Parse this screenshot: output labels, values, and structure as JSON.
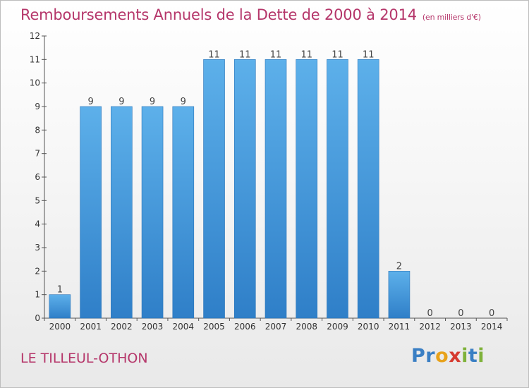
{
  "title": "Remboursements Annuels de la Dette de 2000 à 2014",
  "subtitle": "(en milliers d'€)",
  "commune": "LE TILLEUL-OTHON",
  "logo": {
    "letters": [
      "P",
      "r",
      "o",
      "x",
      "i",
      "t",
      "i"
    ],
    "colors": [
      "#3a7fc4",
      "#3a7fc4",
      "#e8a21b",
      "#d63a2f",
      "#7fb23a",
      "#3a7fc4",
      "#7fb23a"
    ]
  },
  "colors": {
    "bar_top": "#5db0ea",
    "bar_bottom": "#2f7fc8",
    "title": "#b5366a"
  },
  "chart_data": {
    "type": "bar",
    "title": "Remboursements Annuels de la Dette de 2000 à 2014",
    "categories": [
      "2000",
      "2001",
      "2002",
      "2003",
      "2004",
      "2005",
      "2006",
      "2007",
      "2008",
      "2009",
      "2010",
      "2011",
      "2012",
      "2013",
      "2014"
    ],
    "values": [
      1,
      9,
      9,
      9,
      9,
      11,
      11,
      11,
      11,
      11,
      11,
      2,
      0,
      0,
      0
    ],
    "ylim": [
      0,
      12
    ],
    "yticks": [
      0,
      1,
      2,
      3,
      4,
      5,
      6,
      7,
      8,
      9,
      10,
      11,
      12
    ],
    "xlabel": "",
    "ylabel": "",
    "grid": false,
    "legend": "none"
  }
}
